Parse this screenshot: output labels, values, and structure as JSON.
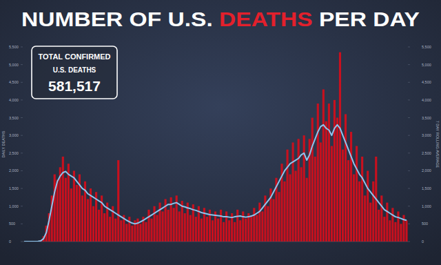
{
  "chart_data": {
    "type": "bar",
    "title": [
      "NUMBER OF U.S.",
      "DEATHS",
      "PER DAY"
    ],
    "annotation": {
      "lines": [
        "TOTAL CONFIRMED",
        "U.S. DEATHS"
      ],
      "value": "581,517"
    },
    "y_label": "DAILY DEATHS",
    "y2_label": "7 DAY ROLLING AVERAGE",
    "tick_labels": "y",
    "grid": false,
    "ylim": [
      0,
      5500
    ],
    "yticks": [
      0,
      500,
      {
        "value": 1000,
        "label": "1,000"
      },
      {
        "value": 1500,
        "label": "1,500"
      },
      {
        "value": 2000,
        "label": "2,000"
      },
      {
        "value": 2500,
        "label": "2,500"
      },
      {
        "value": 3000,
        "label": "3,000"
      },
      {
        "value": 3500,
        "label": "3,500"
      },
      {
        "value": 4000,
        "label": "4,000"
      },
      {
        "value": 4500,
        "label": "4,500"
      },
      {
        "value": 5000,
        "label": "5,000"
      },
      {
        "value": 5500,
        "label": "5,500"
      }
    ],
    "y2lim": [
      0,
      5500
    ],
    "y2ticks": [
      0,
      500,
      {
        "value": 1000,
        "label": "1,000"
      },
      {
        "value": 1500,
        "label": "1,500"
      },
      {
        "value": 2000,
        "label": "2,000"
      },
      {
        "value": 2500,
        "label": "2,500"
      },
      {
        "value": 3000,
        "label": "3,000"
      },
      {
        "value": 3500,
        "label": "3,500"
      },
      {
        "value": 4000,
        "label": "4,000"
      },
      {
        "value": 4500,
        "label": "4,500"
      },
      {
        "value": 5000,
        "label": "5,000"
      },
      {
        "value": 5500,
        "label": "5,500"
      }
    ],
    "series": [
      {
        "type": "bar",
        "color": "#c8101e",
        "values": [
          0,
          0,
          0,
          0,
          5,
          15,
          40,
          150,
          450,
          800,
          1300,
          1900,
          1750,
          2100,
          2400,
          1800,
          2200,
          1500,
          2000,
          1600,
          1900,
          1300,
          1700,
          1200,
          1500,
          1000,
          1400,
          900,
          1300,
          800,
          1100,
          700,
          1000,
          650,
          2300,
          600,
          750,
          500,
          700,
          450,
          600,
          650,
          500,
          700,
          550,
          900,
          650,
          1000,
          750,
          1100,
          850,
          1200,
          900,
          1250,
          950,
          1300,
          850,
          1150,
          800,
          1100,
          750,
          1050,
          700,
          1000,
          650,
          950,
          700,
          900,
          600,
          850,
          650,
          900,
          550,
          850,
          600,
          800,
          550,
          900,
          600,
          850,
          650,
          800,
          700,
          950,
          750,
          1100,
          850,
          1300,
          1000,
          1500,
          1200,
          1800,
          1400,
          2200,
          1700,
          2600,
          1900,
          2800,
          2000,
          2900,
          2100,
          3000,
          1800,
          2900,
          3500,
          2400,
          3900,
          2800,
          4300,
          3400,
          3900,
          2700,
          4000,
          3500,
          5350,
          2600,
          3600,
          2300,
          3100,
          1900,
          2700,
          1700,
          2400,
          1300,
          2000,
          1100,
          1700,
          2400,
          900,
          1300,
          700,
          1100,
          600,
          950,
          550,
          850,
          500,
          750,
          600
        ]
      },
      {
        "type": "line",
        "axis": "y2",
        "color": "#8ec5ee",
        "values": [
          0,
          0,
          0,
          0,
          0,
          5,
          20,
          80,
          250,
          600,
          1000,
          1400,
          1700,
          1850,
          1950,
          1980,
          1900,
          1850,
          1800,
          1700,
          1600,
          1500,
          1450,
          1350,
          1300,
          1250,
          1200,
          1150,
          1100,
          1000,
          950,
          900,
          850,
          800,
          750,
          700,
          650,
          600,
          560,
          520,
          500,
          520,
          560,
          600,
          650,
          700,
          750,
          800,
          850,
          900,
          950,
          1000,
          1050,
          1050,
          1080,
          1100,
          1050,
          1000,
          980,
          950,
          930,
          900,
          880,
          850,
          820,
          800,
          780,
          760,
          750,
          740,
          730,
          720,
          700,
          700,
          690,
          680,
          700,
          710,
          720,
          700,
          690,
          700,
          720,
          750,
          800,
          850,
          950,
          1050,
          1150,
          1250,
          1400,
          1550,
          1700,
          1850,
          2000,
          2100,
          2200,
          2250,
          2300,
          2350,
          2450,
          2500,
          2300,
          2450,
          2700,
          2900,
          3100,
          3250,
          3300,
          3200,
          3150,
          3000,
          3200,
          3300,
          3200,
          3000,
          2800,
          2600,
          2400,
          2200,
          2050,
          1900,
          1800,
          1650,
          1500,
          1400,
          1300,
          1200,
          1100,
          1000,
          900,
          850,
          800,
          750,
          700,
          680,
          650,
          620,
          600
        ]
      }
    ]
  }
}
